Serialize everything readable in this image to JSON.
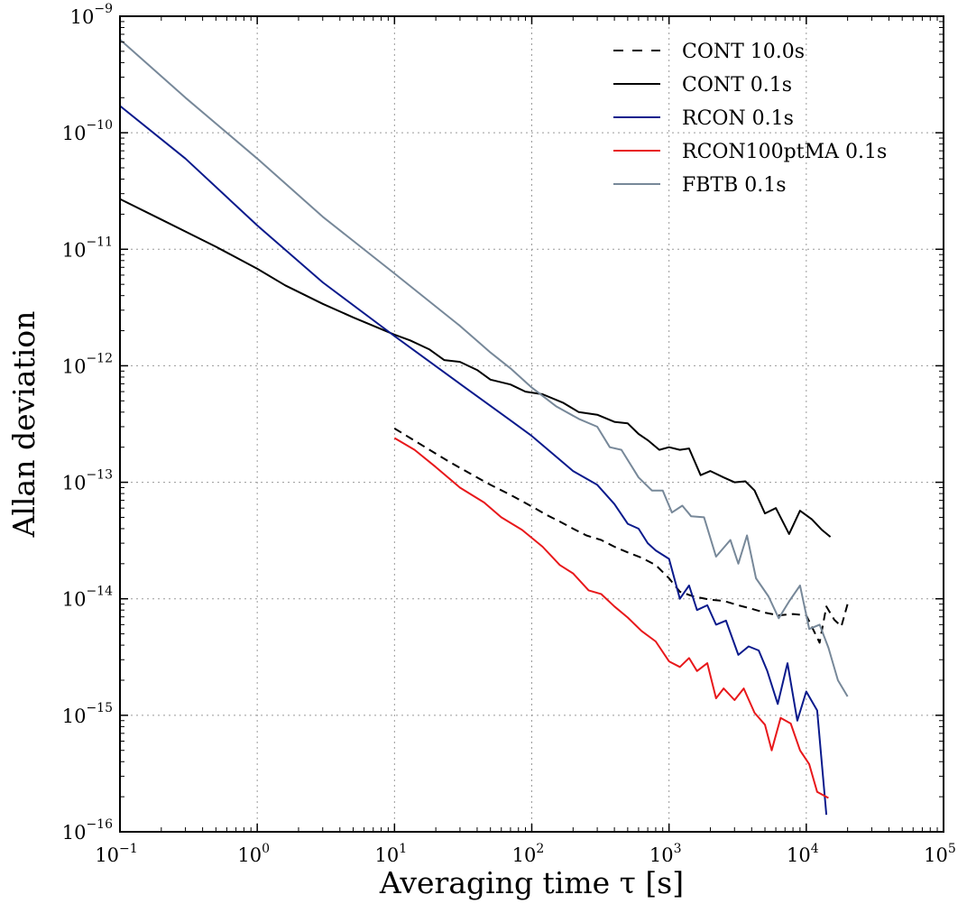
{
  "chart_data": {
    "type": "line",
    "xscale": "log",
    "yscale": "log",
    "xlim": [
      0.1,
      100000
    ],
    "ylim": [
      1e-16,
      1e-09
    ],
    "grid": true,
    "legend_position": "top-right",
    "xlabel": "Averaging time τ [s]",
    "ylabel": "Allan deviation",
    "x_ticks": [
      {
        "value": 0.1,
        "base": "10",
        "exp": "−1"
      },
      {
        "value": 1,
        "base": "10",
        "exp": "0"
      },
      {
        "value": 10,
        "base": "10",
        "exp": "1"
      },
      {
        "value": 100,
        "base": "10",
        "exp": "2"
      },
      {
        "value": 1000,
        "base": "10",
        "exp": "3"
      },
      {
        "value": 10000,
        "base": "10",
        "exp": "4"
      },
      {
        "value": 100000,
        "base": "10",
        "exp": "5"
      }
    ],
    "y_ticks": [
      {
        "value": 1e-16,
        "base": "10",
        "exp": "−16"
      },
      {
        "value": 1e-15,
        "base": "10",
        "exp": "−15"
      },
      {
        "value": 1e-14,
        "base": "10",
        "exp": "−14"
      },
      {
        "value": 1e-13,
        "base": "10",
        "exp": "−13"
      },
      {
        "value": 1e-12,
        "base": "10",
        "exp": "−12"
      },
      {
        "value": 1e-11,
        "base": "10",
        "exp": "−11"
      },
      {
        "value": 1e-10,
        "base": "10",
        "exp": "−10"
      },
      {
        "value": 1e-09,
        "base": "10",
        "exp": "−9"
      }
    ],
    "series": [
      {
        "name": "CONT 10.0s",
        "color": "#000000",
        "dashed": true,
        "points": [
          [
            10,
            2.9e-13
          ],
          [
            13,
            2.4e-13
          ],
          [
            18,
            1.9e-13
          ],
          [
            25,
            1.5e-13
          ],
          [
            35,
            1.2e-13
          ],
          [
            50,
            9.5e-14
          ],
          [
            70,
            7.8e-14
          ],
          [
            100,
            6.2e-14
          ],
          [
            130,
            5.2e-14
          ],
          [
            160,
            4.6e-14
          ],
          [
            200,
            4e-14
          ],
          [
            250,
            3.5e-14
          ],
          [
            320,
            3.2e-14
          ],
          [
            400,
            2.8e-14
          ],
          [
            500,
            2.5e-14
          ],
          [
            630,
            2.25e-14
          ],
          [
            800,
            1.95e-14
          ],
          [
            1000,
            1.5e-14
          ],
          [
            1200,
            1.15e-14
          ],
          [
            1500,
            1.05e-14
          ],
          [
            2000,
            9.8e-15
          ],
          [
            2500,
            9.6e-15
          ],
          [
            3200,
            8.8e-15
          ],
          [
            4000,
            8.2e-15
          ],
          [
            5000,
            7.6e-15
          ],
          [
            6300,
            7.2e-15
          ],
          [
            8000,
            7.4e-15
          ],
          [
            10000,
            7.2e-15
          ],
          [
            12500,
            4.2e-15
          ],
          [
            14000,
            8.6e-15
          ],
          [
            16000,
            6.6e-15
          ],
          [
            18000,
            5.8e-15
          ],
          [
            20000,
            9e-15
          ]
        ]
      },
      {
        "name": "CONT 0.1s",
        "color": "#000000",
        "dashed": false,
        "points": [
          [
            0.1,
            2.7e-11
          ],
          [
            0.2,
            1.8e-11
          ],
          [
            0.5,
            1.05e-11
          ],
          [
            1,
            6.8e-12
          ],
          [
            1.6,
            4.9e-12
          ],
          [
            3,
            3.4e-12
          ],
          [
            5,
            2.6e-12
          ],
          [
            10,
            1.85e-12
          ],
          [
            13,
            1.65e-12
          ],
          [
            18,
            1.38e-12
          ],
          [
            23,
            1.12e-12
          ],
          [
            30,
            1.08e-12
          ],
          [
            40,
            9.2e-13
          ],
          [
            50,
            7.6e-13
          ],
          [
            70,
            6.9e-13
          ],
          [
            90,
            6e-13
          ],
          [
            120,
            5.7e-13
          ],
          [
            170,
            4.8e-13
          ],
          [
            220,
            4e-13
          ],
          [
            300,
            3.8e-13
          ],
          [
            400,
            3.3e-13
          ],
          [
            500,
            3.2e-13
          ],
          [
            600,
            2.6e-13
          ],
          [
            700,
            2.3e-13
          ],
          [
            850,
            1.9e-13
          ],
          [
            1000,
            2e-13
          ],
          [
            1200,
            1.9e-13
          ],
          [
            1400,
            1.95e-13
          ],
          [
            1700,
            1.15e-13
          ],
          [
            2000,
            1.25e-13
          ],
          [
            2500,
            1.1e-13
          ],
          [
            3000,
            1e-13
          ],
          [
            3600,
            1.02e-13
          ],
          [
            4200,
            8.5e-14
          ],
          [
            5000,
            5.4e-14
          ],
          [
            6000,
            6e-14
          ],
          [
            7500,
            3.6e-14
          ],
          [
            9000,
            5.7e-14
          ],
          [
            11000,
            4.8e-14
          ],
          [
            13000,
            3.9e-14
          ],
          [
            15000,
            3.4e-14
          ]
        ]
      },
      {
        "name": "RCON 0.1s",
        "color": "#0a1a8c",
        "dashed": false,
        "points": [
          [
            0.1,
            1.7e-10
          ],
          [
            0.3,
            6e-11
          ],
          [
            1,
            1.6e-11
          ],
          [
            3,
            5.2e-12
          ],
          [
            10,
            1.8e-12
          ],
          [
            30,
            7e-13
          ],
          [
            70,
            3.4e-13
          ],
          [
            100,
            2.5e-13
          ],
          [
            200,
            1.25e-13
          ],
          [
            300,
            9.5e-14
          ],
          [
            400,
            6.5e-14
          ],
          [
            500,
            4.4e-14
          ],
          [
            600,
            4e-14
          ],
          [
            700,
            3e-14
          ],
          [
            800,
            2.6e-14
          ],
          [
            1000,
            2.2e-14
          ],
          [
            1200,
            1e-14
          ],
          [
            1400,
            1.3e-14
          ],
          [
            1600,
            8e-15
          ],
          [
            1900,
            8.8e-15
          ],
          [
            2200,
            6e-15
          ],
          [
            2600,
            6.5e-15
          ],
          [
            3200,
            3.3e-15
          ],
          [
            3800,
            3.9e-15
          ],
          [
            4500,
            3.6e-15
          ],
          [
            5200,
            2.4e-15
          ],
          [
            6200,
            1.25e-15
          ],
          [
            7300,
            2.8e-15
          ],
          [
            8600,
            9e-16
          ],
          [
            10000,
            1.6e-15
          ],
          [
            12000,
            1.1e-15
          ],
          [
            14000,
            1.4e-16
          ]
        ]
      },
      {
        "name": "RCON100ptMA 0.1s",
        "color": "#e8181b",
        "dashed": false,
        "points": [
          [
            10,
            2.4e-13
          ],
          [
            14,
            1.9e-13
          ],
          [
            20,
            1.35e-13
          ],
          [
            30,
            9e-14
          ],
          [
            45,
            6.7e-14
          ],
          [
            60,
            5e-14
          ],
          [
            85,
            3.9e-14
          ],
          [
            120,
            2.8e-14
          ],
          [
            160,
            1.95e-14
          ],
          [
            200,
            1.65e-14
          ],
          [
            260,
            1.18e-14
          ],
          [
            320,
            1.1e-14
          ],
          [
            400,
            8.6e-15
          ],
          [
            500,
            6.9e-15
          ],
          [
            630,
            5.3e-15
          ],
          [
            800,
            4.3e-15
          ],
          [
            1000,
            2.9e-15
          ],
          [
            1200,
            2.6e-15
          ],
          [
            1400,
            3.1e-15
          ],
          [
            1600,
            2.4e-15
          ],
          [
            1900,
            2.8e-15
          ],
          [
            2200,
            1.4e-15
          ],
          [
            2500,
            1.7e-15
          ],
          [
            3000,
            1.35e-15
          ],
          [
            3500,
            1.7e-15
          ],
          [
            4200,
            1.05e-15
          ],
          [
            5000,
            8.3e-16
          ],
          [
            5600,
            5e-16
          ],
          [
            6500,
            9.5e-16
          ],
          [
            7700,
            8.5e-16
          ],
          [
            9000,
            5e-16
          ],
          [
            10500,
            3.8e-16
          ],
          [
            12000,
            2.2e-16
          ],
          [
            14500,
            1.95e-16
          ]
        ]
      },
      {
        "name": "FBTB 0.1s",
        "color": "#778899",
        "dashed": false,
        "points": [
          [
            0.1,
            6.3e-10
          ],
          [
            0.3,
            2e-10
          ],
          [
            1,
            6e-11
          ],
          [
            3,
            1.9e-11
          ],
          [
            10,
            6.2e-12
          ],
          [
            30,
            2.2e-12
          ],
          [
            50,
            1.3e-12
          ],
          [
            70,
            9.5e-13
          ],
          [
            100,
            6.5e-13
          ],
          [
            150,
            4.5e-13
          ],
          [
            220,
            3.5e-13
          ],
          [
            300,
            3e-13
          ],
          [
            370,
            2e-13
          ],
          [
            450,
            1.9e-13
          ],
          [
            600,
            1.1e-13
          ],
          [
            750,
            8.5e-14
          ],
          [
            900,
            8.5e-14
          ],
          [
            1050,
            5.5e-14
          ],
          [
            1250,
            6.3e-14
          ],
          [
            1450,
            5.1e-14
          ],
          [
            1800,
            5e-14
          ],
          [
            2200,
            2.3e-14
          ],
          [
            2800,
            3.2e-14
          ],
          [
            3200,
            2e-14
          ],
          [
            3700,
            3.5e-14
          ],
          [
            4300,
            1.5e-14
          ],
          [
            5300,
            1.05e-14
          ],
          [
            6300,
            6.8e-15
          ],
          [
            7500,
            9.5e-15
          ],
          [
            9000,
            1.3e-14
          ],
          [
            10500,
            5.5e-15
          ],
          [
            12500,
            6e-15
          ],
          [
            14500,
            3.8e-15
          ],
          [
            17000,
            2e-15
          ],
          [
            20000,
            1.45e-15
          ]
        ]
      }
    ]
  }
}
